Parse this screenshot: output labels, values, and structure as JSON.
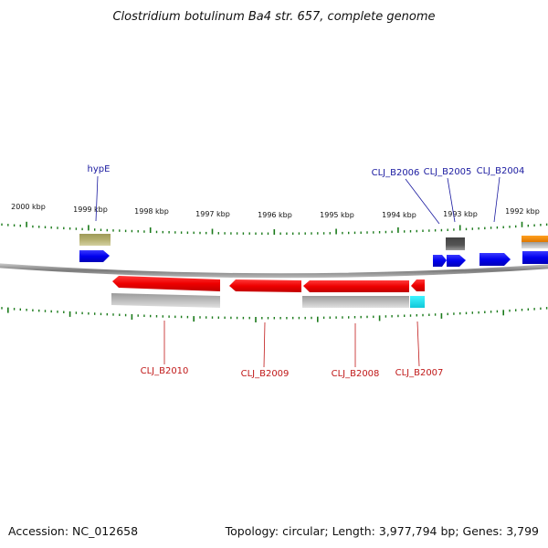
{
  "title": "Clostridium botulinum Ba4 str. 657, complete genome",
  "footer": {
    "accession": "Accession: NC_012658",
    "summary": "Topology: circular; Length: 3,977,794 bp; Genes: 3,799"
  },
  "scale": {
    "labels": [
      "2000 kbp",
      "1999 kbp",
      "1998 kbp",
      "1997 kbp",
      "1996 kbp",
      "1995 kbp",
      "1994 kbp",
      "1993 kbp",
      "1992 kbp"
    ]
  },
  "genes_forward": [
    {
      "name": "hypE",
      "label": "hypE"
    },
    {
      "name": "CLJ_B2006",
      "label": "CLJ_B2006"
    },
    {
      "name": "CLJ_B2005",
      "label": "CLJ_B2005"
    },
    {
      "name": "CLJ_B2004",
      "label": "CLJ_B2004"
    }
  ],
  "genes_reverse": [
    {
      "name": "CLJ_B2010",
      "label": "CLJ_B2010"
    },
    {
      "name": "CLJ_B2009",
      "label": "CLJ_B2009"
    },
    {
      "name": "CLJ_B2008",
      "label": "CLJ_B2008"
    },
    {
      "name": "CLJ_B2007",
      "label": "CLJ_B2007"
    }
  ],
  "colors": {
    "forward_gene": "#0000ee",
    "reverse_gene": "#ee0000",
    "backbone": "#888888",
    "tick": "#1a7a1a",
    "olive_feature": "#b5b070",
    "orange_feature": "#f08a00",
    "cyan_feature": "#20e8f0",
    "dark_feature": "#555555",
    "grey_feature": "#b8b8b8"
  }
}
